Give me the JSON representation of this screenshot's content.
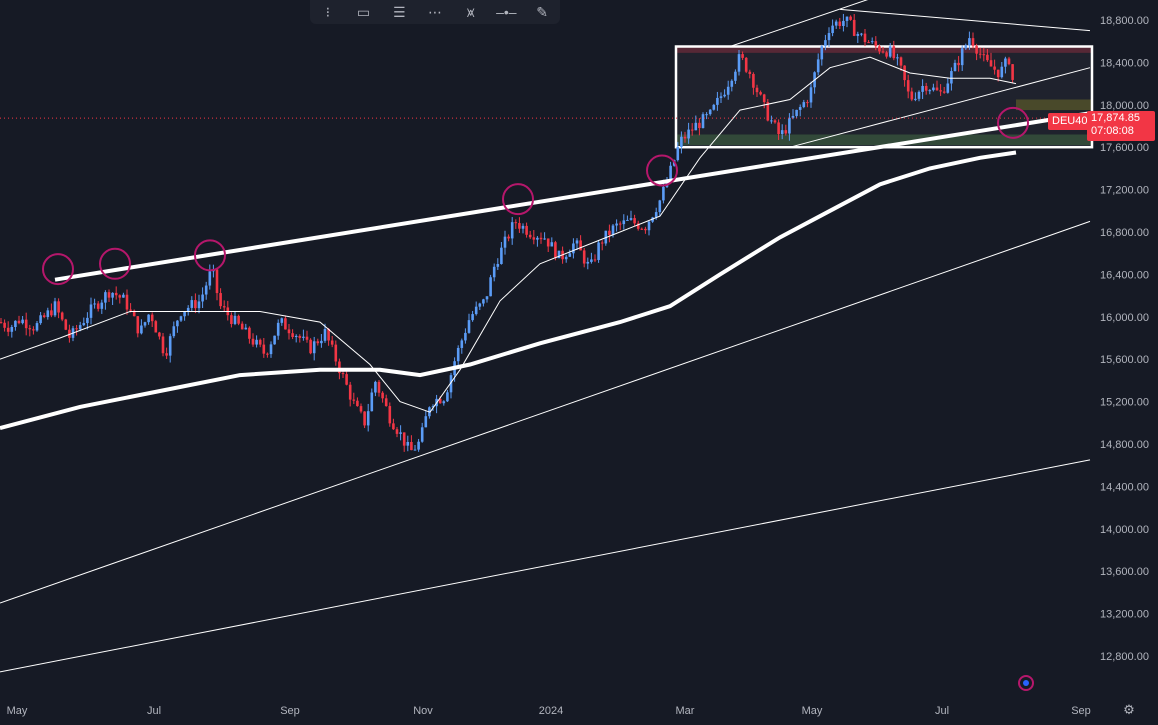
{
  "toolbar": {
    "tools": [
      {
        "name": "dots-tool",
        "glyph": "⁝"
      },
      {
        "name": "rectangle-tool",
        "glyph": "▭"
      },
      {
        "name": "text-lines-tool",
        "glyph": "☰"
      },
      {
        "name": "channel-tool",
        "glyph": "⋯"
      },
      {
        "name": "pitchfork-tool",
        "glyph": "⩙"
      },
      {
        "name": "horizontal-ray-tool",
        "glyph": "–•–"
      },
      {
        "name": "brush-tool",
        "glyph": "✎"
      }
    ]
  },
  "instrument": {
    "symbol": "DEU40",
    "last_price": "17,874.85",
    "countdown": "07:08:08",
    "symbol_badge_color": "#f23645",
    "price_badge_color": "#f23645"
  },
  "colors": {
    "background": "#161a25",
    "up": "#5b9cf6",
    "down": "#f23645",
    "annotation": "#b5176b",
    "grid_text": "#b2b5be",
    "lines": "#ffffff"
  },
  "chart_data": {
    "type": "candlestick",
    "x_axis": {
      "ticks": [
        "May",
        "Jul",
        "Sep",
        "Nov",
        "2024",
        "Mar",
        "May",
        "Jul",
        "Sep"
      ]
    },
    "y_axis": {
      "ticks": [
        "18,800.00",
        "18,400.00",
        "18,000.00",
        "17,600.00",
        "17,200.00",
        "16,800.00",
        "16,400.00",
        "16,000.00",
        "15,600.00",
        "15,200.00",
        "14,800.00",
        "14,400.00",
        "14,000.00",
        "13,600.00",
        "13,200.00",
        "12,800.00"
      ],
      "range": [
        12600,
        18950
      ]
    },
    "current_price": 17874.85,
    "price_path": [
      [
        0,
        15950
      ],
      [
        10,
        15900
      ],
      [
        20,
        15980
      ],
      [
        35,
        15900
      ],
      [
        55,
        16100
      ],
      [
        70,
        15800
      ],
      [
        90,
        16050
      ],
      [
        110,
        16250
      ],
      [
        125,
        16150
      ],
      [
        140,
        15850
      ],
      [
        150,
        16050
      ],
      [
        165,
        15650
      ],
      [
        180,
        16050
      ],
      [
        200,
        16150
      ],
      [
        212,
        16450
      ],
      [
        220,
        16100
      ],
      [
        235,
        15950
      ],
      [
        250,
        15800
      ],
      [
        265,
        15650
      ],
      [
        280,
        15950
      ],
      [
        295,
        15850
      ],
      [
        310,
        15700
      ],
      [
        325,
        15850
      ],
      [
        340,
        15500
      ],
      [
        355,
        15150
      ],
      [
        365,
        15000
      ],
      [
        375,
        15400
      ],
      [
        390,
        15050
      ],
      [
        400,
        14900
      ],
      [
        410,
        14720
      ],
      [
        420,
        14820
      ],
      [
        430,
        15200
      ],
      [
        445,
        15250
      ],
      [
        455,
        15600
      ],
      [
        470,
        16000
      ],
      [
        485,
        16150
      ],
      [
        495,
        16500
      ],
      [
        505,
        16700
      ],
      [
        515,
        16900
      ],
      [
        530,
        16800
      ],
      [
        545,
        16750
      ],
      [
        560,
        16550
      ],
      [
        575,
        16700
      ],
      [
        590,
        16450
      ],
      [
        600,
        16700
      ],
      [
        615,
        16850
      ],
      [
        630,
        16900
      ],
      [
        645,
        16850
      ],
      [
        660,
        17100
      ],
      [
        668,
        17300
      ],
      [
        680,
        17650
      ],
      [
        695,
        17800
      ],
      [
        710,
        17900
      ],
      [
        725,
        18150
      ],
      [
        740,
        18450
      ],
      [
        750,
        18300
      ],
      [
        765,
        17950
      ],
      [
        780,
        17700
      ],
      [
        795,
        17900
      ],
      [
        810,
        18100
      ],
      [
        820,
        18500
      ],
      [
        830,
        18750
      ],
      [
        845,
        18800
      ],
      [
        860,
        18650
      ],
      [
        875,
        18550
      ],
      [
        890,
        18500
      ],
      [
        900,
        18350
      ],
      [
        910,
        18050
      ],
      [
        925,
        18200
      ],
      [
        940,
        18100
      ],
      [
        955,
        18350
      ],
      [
        970,
        18650
      ],
      [
        985,
        18400
      ],
      [
        1000,
        18300
      ],
      [
        1010,
        18450
      ],
      [
        1016,
        17950
      ]
    ],
    "moving_averages": [
      {
        "kind": "fast",
        "path": [
          [
            0,
            15600
          ],
          [
            60,
            15800
          ],
          [
            130,
            16050
          ],
          [
            200,
            16050
          ],
          [
            260,
            16050
          ],
          [
            320,
            15950
          ],
          [
            370,
            15550
          ],
          [
            400,
            15200
          ],
          [
            430,
            15100
          ],
          [
            460,
            15500
          ],
          [
            500,
            16150
          ],
          [
            540,
            16500
          ],
          [
            580,
            16650
          ],
          [
            620,
            16800
          ],
          [
            660,
            16950
          ],
          [
            700,
            17500
          ],
          [
            740,
            17950
          ],
          [
            790,
            18050
          ],
          [
            830,
            18350
          ],
          [
            870,
            18450
          ],
          [
            910,
            18300
          ],
          [
            950,
            18250
          ],
          [
            990,
            18250
          ],
          [
            1016,
            18200
          ]
        ]
      },
      {
        "kind": "slow",
        "path": [
          [
            0,
            14950
          ],
          [
            80,
            15150
          ],
          [
            160,
            15300
          ],
          [
            240,
            15450
          ],
          [
            320,
            15500
          ],
          [
            380,
            15500
          ],
          [
            420,
            15450
          ],
          [
            470,
            15550
          ],
          [
            540,
            15750
          ],
          [
            620,
            15950
          ],
          [
            670,
            16100
          ],
          [
            720,
            16400
          ],
          [
            780,
            16750
          ],
          [
            830,
            17000
          ],
          [
            880,
            17250
          ],
          [
            930,
            17400
          ],
          [
            980,
            17500
          ],
          [
            1016,
            17550
          ]
        ]
      }
    ],
    "trendlines": [
      {
        "kind": "resistance-thick",
        "from": [
          55,
          16350
        ],
        "to": [
          1090,
          17920
        ]
      },
      {
        "kind": "support",
        "from": [
          0,
          13300
        ],
        "to": [
          1090,
          16900
        ]
      },
      {
        "kind": "support-long",
        "from": [
          0,
          12650
        ],
        "to": [
          1090,
          14650
        ]
      },
      {
        "kind": "channel-upper",
        "from": [
          730,
          18550
        ],
        "to": [
          870,
          19000
        ]
      },
      {
        "kind": "channel-lower",
        "from": [
          790,
          17600
        ],
        "to": [
          1090,
          18350
        ]
      },
      {
        "kind": "channel-top-right",
        "from": [
          840,
          18900
        ],
        "to": [
          1090,
          18700
        ]
      }
    ],
    "range_box": {
      "top": 18550,
      "bottom": 17600,
      "x_from": 676,
      "x_to": 1092
    },
    "zones": [
      {
        "kind": "supply",
        "top": 18560,
        "bottom": 18490,
        "x_from": 676,
        "x_to": 1092,
        "color": "#5a2230"
      },
      {
        "kind": "demand",
        "top": 17720,
        "bottom": 17620,
        "x_from": 676,
        "x_to": 1092,
        "color": "#2e4a34"
      },
      {
        "kind": "target",
        "top": 18050,
        "bottom": 17950,
        "x_from": 1016,
        "x_to": 1092,
        "color": "#4a4a22"
      }
    ],
    "annotations": [
      {
        "kind": "touch-circle",
        "x": 58,
        "price": 16450
      },
      {
        "kind": "touch-circle",
        "x": 115,
        "price": 16500
      },
      {
        "kind": "touch-circle",
        "x": 210,
        "price": 16580
      },
      {
        "kind": "touch-circle",
        "x": 518,
        "price": 17110
      },
      {
        "kind": "touch-circle",
        "x": 662,
        "price": 17380
      },
      {
        "kind": "touch-circle",
        "x": 1013,
        "price": 17830
      }
    ]
  }
}
